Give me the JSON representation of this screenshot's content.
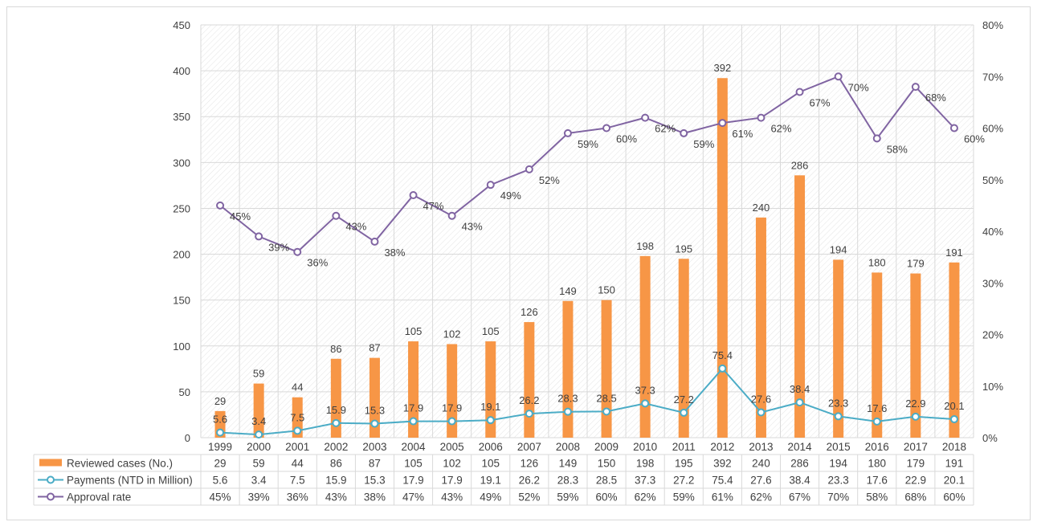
{
  "chart_data": {
    "type": "bar",
    "title": "",
    "xlabel": "",
    "ylabel": "",
    "categories": [
      "1999",
      "2000",
      "2001",
      "2002",
      "2003",
      "2004",
      "2005",
      "2006",
      "2007",
      "2008",
      "2009",
      "2010",
      "2011",
      "2012",
      "2013",
      "2014",
      "2015",
      "2016",
      "2017",
      "2018"
    ],
    "series": [
      {
        "name": "Reviewed cases (No.)",
        "kind": "bar",
        "axis": "left",
        "color": "#F79646",
        "values": [
          29,
          59,
          44,
          86,
          87,
          105,
          102,
          105,
          126,
          149,
          150,
          198,
          195,
          392,
          240,
          286,
          194,
          180,
          179,
          191
        ],
        "labels": [
          "29",
          "59",
          "44",
          "86",
          "87",
          "105",
          "102",
          "105",
          "126",
          "149",
          "150",
          "198",
          "195",
          "392",
          "240",
          "286",
          "194",
          "180",
          "179",
          "191"
        ]
      },
      {
        "name": "Payments (NTD in Million)",
        "kind": "line",
        "axis": "left",
        "color": "#4BACC6",
        "values": [
          5.6,
          3.4,
          7.5,
          15.9,
          15.3,
          17.9,
          17.9,
          19.1,
          26.2,
          28.3,
          28.5,
          37.3,
          27.2,
          75.4,
          27.6,
          38.4,
          23.3,
          17.6,
          22.9,
          20.1
        ],
        "labels": [
          "5.6",
          "3.4",
          "7.5",
          "15.9",
          "15.3",
          "17.9",
          "17.9",
          "19.1",
          "26.2",
          "28.3",
          "28.5",
          "37.3",
          "27.2",
          "75.4",
          "27.6",
          "38.4",
          "23.3",
          "17.6",
          "22.9",
          "20.1"
        ]
      },
      {
        "name": "Approval rate",
        "kind": "line",
        "axis": "right",
        "color": "#8064A2",
        "values": [
          45,
          39,
          36,
          43,
          38,
          47,
          43,
          49,
          52,
          59,
          60,
          62,
          59,
          61,
          62,
          67,
          70,
          58,
          68,
          60
        ],
        "labels": [
          "45%",
          "39%",
          "36%",
          "43%",
          "38%",
          "47%",
          "43%",
          "49%",
          "52%",
          "59%",
          "60%",
          "62%",
          "59%",
          "61%",
          "62%",
          "67%",
          "70%",
          "58%",
          "68%",
          "60%"
        ]
      }
    ],
    "y_left": {
      "min": 0,
      "max": 450,
      "ticks": [
        "0",
        "50",
        "100",
        "150",
        "200",
        "250",
        "300",
        "350",
        "400",
        "450"
      ]
    },
    "y_right": {
      "min": 0,
      "max": 80,
      "ticks": [
        "0%",
        "10%",
        "20%",
        "30%",
        "40%",
        "50%",
        "60%",
        "70%",
        "80%"
      ]
    },
    "grid": true,
    "legend": "data table below chart"
  }
}
